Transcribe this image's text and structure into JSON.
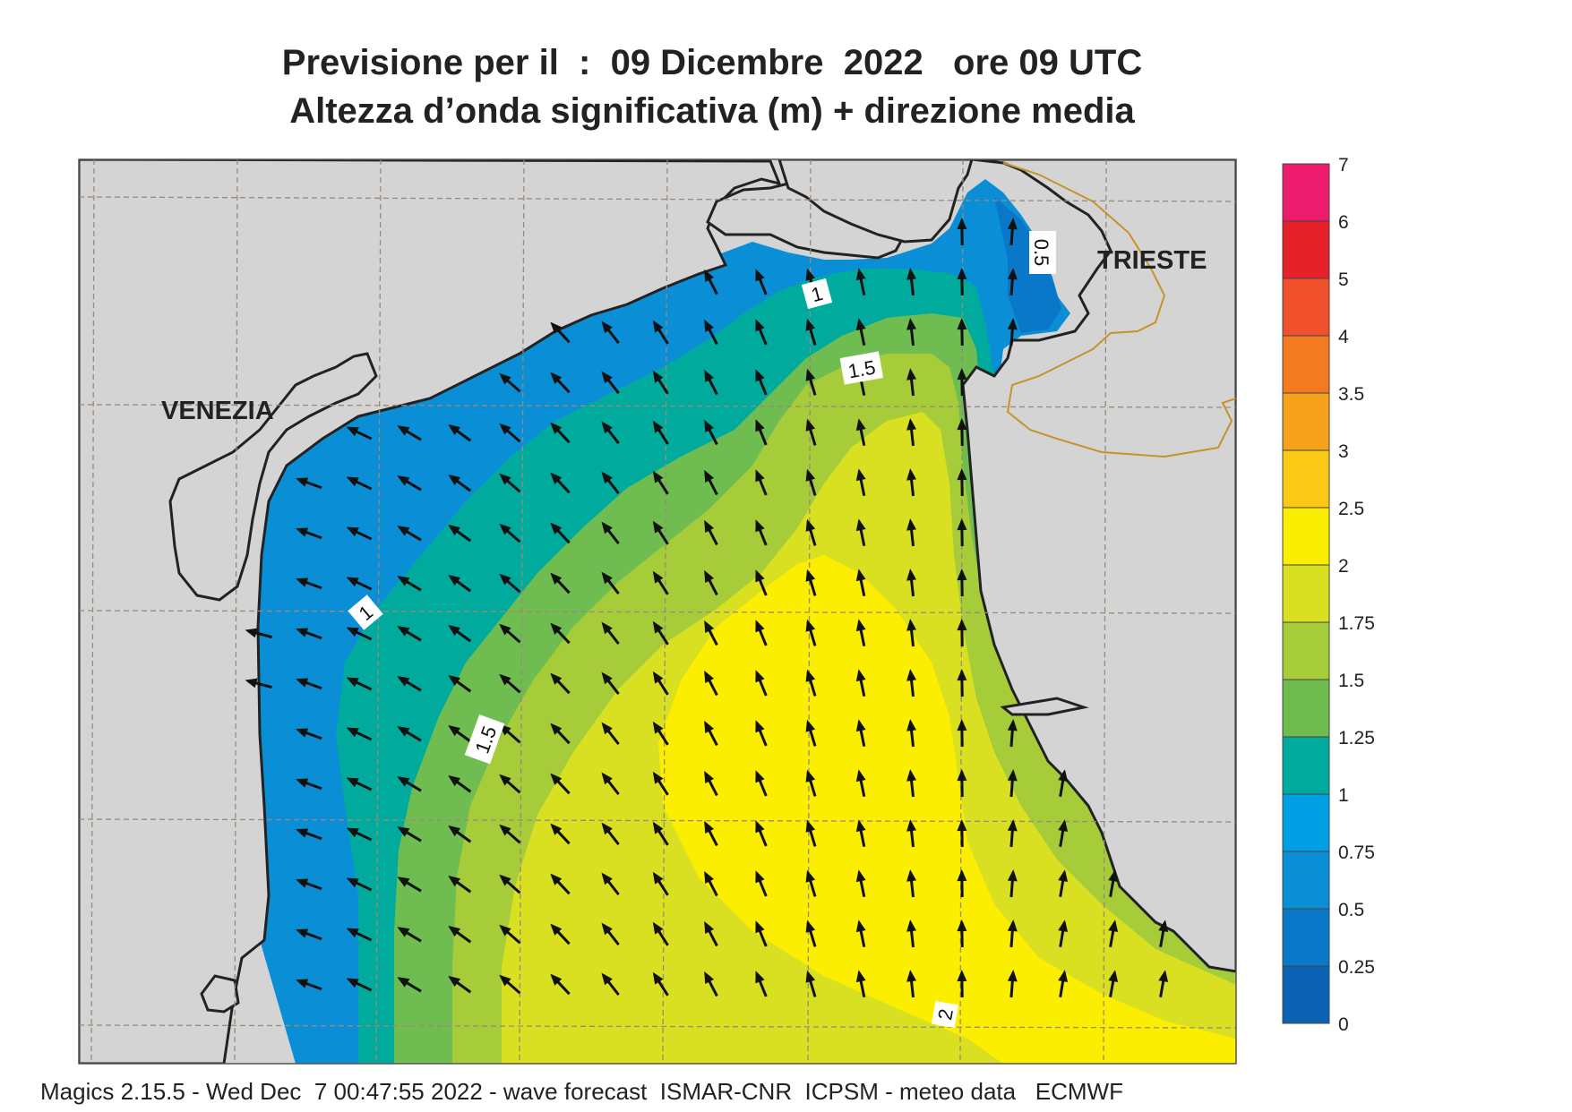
{
  "title": {
    "line1": "Previsione per il  :  09 Dicembre  2022   ore 09 UTC",
    "line2": "Altezza d’onda significativa (m) + direzione media"
  },
  "places": [
    {
      "name": "VENEZIA"
    },
    {
      "name": "TRIESTE"
    }
  ],
  "contour_labels": [
    "1",
    "1.5",
    "0.5",
    "1",
    "1.5",
    "2"
  ],
  "legend": {
    "ticks": [
      "7",
      "6",
      "5",
      "4",
      "3.5",
      "3",
      "2.5",
      "2",
      "1.75",
      "1.5",
      "1.25",
      "1",
      "0.75",
      "0.5",
      "0.25",
      "0"
    ],
    "colors": [
      "#ec1b6c",
      "#e62129",
      "#f0502b",
      "#f47a22",
      "#f7a21d",
      "#fbc915",
      "#fcee00",
      "#d9e021",
      "#a7cc3a",
      "#6fbd50",
      "#00ab9e",
      "#009fe3",
      "#0a8fd6",
      "#0a78c8",
      "#0b62b3"
    ]
  },
  "colors": {
    "land": "#d4d4d4",
    "coast": "#222222",
    "border": "#c8922a",
    "grid": "#9a8a78",
    "arrow": "#111111"
  },
  "arrow_direction": "north-west",
  "footer": "Magics 2.15.5 - Wed Dec  7 00:47:55 2022 - wave forecast  ISMAR-CNR  ICPSM - meteo data   ECMWF"
}
